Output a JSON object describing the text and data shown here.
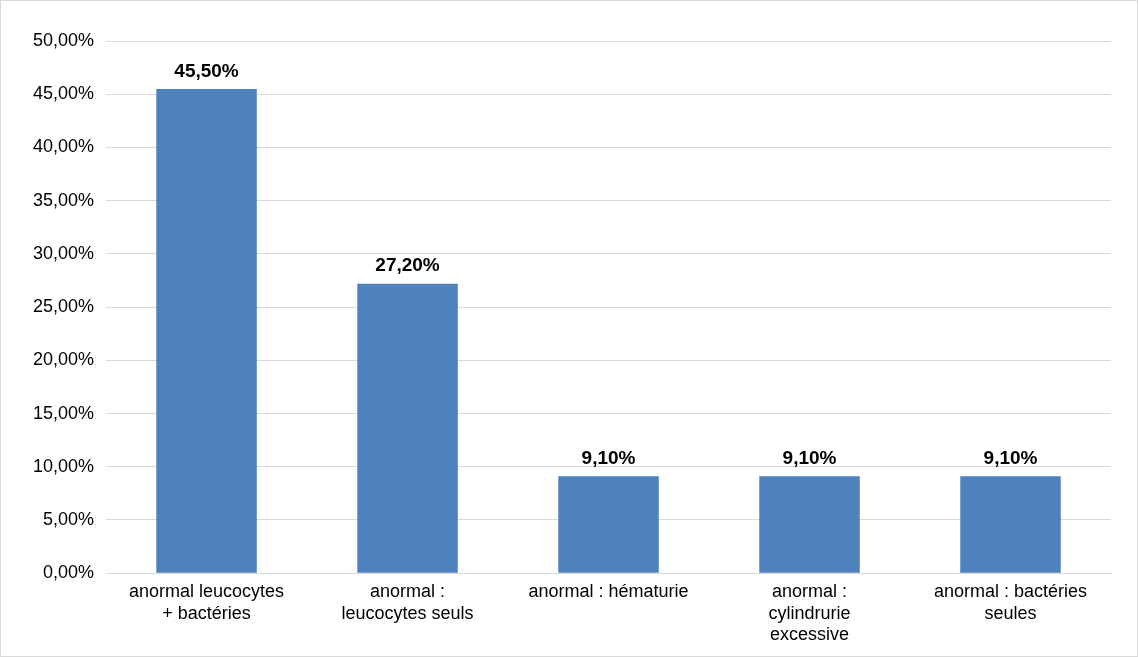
{
  "chart_data": {
    "type": "bar",
    "categories": [
      "anormal leucocytes + bactéries",
      "anormal : leucocytes seuls",
      "anormal : hématurie",
      "anormal : cylindrurie excessive",
      "anormal : bactéries seules"
    ],
    "values": [
      45.5,
      27.2,
      9.1,
      9.1,
      9.1
    ],
    "color": "#4f81bd",
    "value_labels": [
      "45,50%",
      "27,20%",
      "9,10%",
      "9,10%",
      "9,10%"
    ],
    "ylim": [
      0,
      50
    ],
    "yticks": [
      {
        "value": 0,
        "label": "0,00%"
      },
      {
        "value": 5,
        "label": "5,00%"
      },
      {
        "value": 10,
        "label": "10,00%"
      },
      {
        "value": 15,
        "label": "15,00%"
      },
      {
        "value": 20,
        "label": "20,00%"
      },
      {
        "value": 25,
        "label": "25,00%"
      },
      {
        "value": 30,
        "label": "30,00%"
      },
      {
        "value": 35,
        "label": "35,00%"
      },
      {
        "value": 40,
        "label": "40,00%"
      },
      {
        "value": 45,
        "label": "45,00%"
      },
      {
        "value": 50,
        "label": "50,00%"
      }
    ],
    "grid": "y",
    "legend": false
  }
}
